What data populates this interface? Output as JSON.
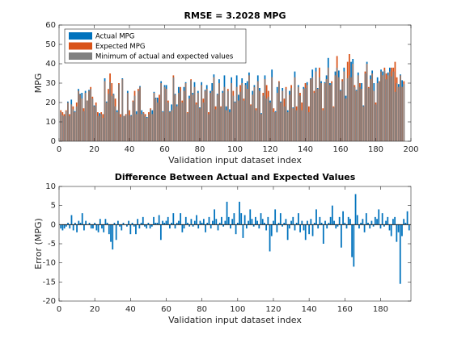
{
  "chart_data": [
    {
      "type": "bar",
      "title": "RMSE = 3.2028 MPG",
      "xlabel": "Validation input dataset index",
      "ylabel": "MPG",
      "xlim": [
        0,
        200
      ],
      "xticks": [
        0,
        20,
        40,
        60,
        80,
        100,
        120,
        140,
        160,
        180,
        200
      ],
      "ylim": [
        0,
        60
      ],
      "yticks": [
        0,
        10,
        20,
        30,
        40,
        50,
        60
      ],
      "legend": "upper left",
      "x": [
        1,
        2,
        3,
        4,
        5,
        6,
        7,
        8,
        9,
        10,
        11,
        12,
        13,
        14,
        15,
        16,
        17,
        18,
        19,
        20,
        21,
        22,
        23,
        24,
        25,
        26,
        27,
        28,
        29,
        30,
        31,
        32,
        33,
        34,
        35,
        36,
        37,
        38,
        39,
        40,
        41,
        42,
        43,
        44,
        45,
        46,
        47,
        48,
        49,
        50,
        51,
        52,
        53,
        54,
        55,
        56,
        57,
        58,
        59,
        60,
        61,
        62,
        63,
        64,
        65,
        66,
        67,
        68,
        69,
        70,
        71,
        72,
        73,
        74,
        75,
        76,
        77,
        78,
        79,
        80,
        81,
        82,
        83,
        84,
        85,
        86,
        87,
        88,
        89,
        90,
        91,
        92,
        93,
        94,
        95,
        96,
        97,
        98,
        99,
        100,
        101,
        102,
        103,
        104,
        105,
        106,
        107,
        108,
        109,
        110,
        111,
        112,
        113,
        114,
        115,
        116,
        117,
        118,
        119,
        120,
        121,
        122,
        123,
        124,
        125,
        126,
        127,
        128,
        129,
        130,
        131,
        132,
        133,
        134,
        135,
        136,
        137,
        138,
        139,
        140,
        141,
        142,
        143,
        144,
        145,
        146,
        147,
        148,
        149,
        150,
        151,
        152,
        153,
        154,
        155,
        156,
        157,
        158,
        159,
        160,
        161,
        162,
        163,
        164,
        165,
        166,
        167,
        168,
        169,
        170,
        171,
        172,
        173,
        174,
        175,
        176,
        177,
        178,
        179,
        180,
        181,
        182,
        183,
        184,
        185,
        186,
        187,
        188,
        189,
        190,
        191,
        192,
        193,
        194,
        195,
        196
      ],
      "series": [
        {
          "name": "Actual MPG",
          "color": "#0072bd",
          "values": [
            15,
            13.5,
            13,
            15.5,
            20.5,
            13,
            21.5,
            16.5,
            15.5,
            18,
            27,
            24.5,
            25,
            15.5,
            26,
            21,
            26.5,
            27,
            22,
            18.5,
            18.5,
            13,
            14.5,
            14,
            12,
            32.5,
            20.5,
            24.5,
            30.5,
            23.5,
            24.5,
            18,
            16,
            29.5,
            12.5,
            32.5,
            13,
            13.5,
            26,
            13.5,
            13.5,
            20.5,
            23.5,
            15.5,
            26,
            28.5,
            16,
            14.5,
            13,
            12.5,
            14,
            16.5,
            16,
            25.5,
            22.5,
            22.5,
            20,
            31,
            15.5,
            29,
            29,
            20,
            15.5,
            19,
            33,
            24.5,
            19,
            28,
            26,
            20,
            28,
            30.5,
            14.5,
            23.5,
            31.5,
            25,
            30.5,
            19,
            26,
            17.5,
            30.5,
            20,
            26.5,
            29,
            14,
            26,
            30,
            34.5,
            16.5,
            24.5,
            32,
            17.5,
            26,
            34,
            18,
            26,
            16.5,
            33,
            23.5,
            20.5,
            34,
            24,
            25.5,
            32.5,
            21,
            30,
            31,
            35.5,
            18.5,
            26,
            29,
            16,
            34,
            27.5,
            14.5,
            23.5,
            34,
            22,
            23,
            21,
            37,
            15,
            15.5,
            28,
            30.5,
            20.5,
            27.5,
            18,
            27,
            16,
            26,
            27.5,
            17.5,
            36,
            16,
            29,
            23.5,
            16,
            28,
            27.5,
            30.5,
            15,
            32.5,
            37,
            25,
            38,
            27.5,
            33,
            31,
            16,
            30.5,
            34,
            43,
            30,
            30,
            17.5,
            36,
            38,
            36.5,
            26.5,
            31,
            38,
            23.5,
            32.5,
            34,
            41,
            42.5,
            28,
            26.5,
            35.5,
            28,
            30,
            18.5,
            35,
            41,
            27.5,
            34,
            36.5,
            30,
            19,
            33,
            30.5,
            37,
            36,
            36.5,
            32,
            35.5,
            38,
            33.5,
            36,
            25.5,
            30,
            29.5,
            34.5,
            31.5,
            29.5
          ]
        },
        {
          "name": "Expected MPG",
          "color": "#d95319",
          "values": [
            16,
            15,
            14,
            16,
            20,
            14,
            19,
            18,
            15,
            20,
            26,
            24,
            22,
            17,
            25,
            21,
            26,
            28,
            23,
            18,
            20,
            15,
            13,
            15,
            14,
            31,
            20,
            27,
            35,
            30,
            24,
            22,
            15,
            30,
            14,
            32,
            13,
            14,
            25,
            16,
            13,
            21,
            26,
            14,
            27,
            28,
            14,
            15,
            14,
            12,
            15,
            17,
            14,
            25,
            22,
            20,
            24,
            30,
            15,
            28,
            27,
            21,
            15,
            16,
            34,
            24,
            18,
            25,
            28,
            21,
            26,
            30,
            15,
            22,
            32,
            24,
            28,
            20,
            25,
            17,
            29,
            22,
            26,
            27,
            15,
            25,
            26,
            33,
            18,
            24,
            30,
            18,
            25,
            28,
            16,
            27,
            15,
            30,
            26,
            20,
            28,
            21,
            29,
            30,
            22,
            29,
            27,
            34,
            19,
            24,
            28,
            17,
            31,
            26,
            14,
            25,
            32,
            29,
            26,
            20,
            33,
            17,
            15,
            25,
            31,
            20,
            26,
            22,
            28,
            15,
            24,
            29,
            17,
            33,
            18,
            28,
            25,
            20,
            27,
            30,
            29,
            18,
            32,
            33,
            26,
            36,
            27,
            38,
            30,
            17,
            30,
            32,
            38,
            29,
            31,
            18,
            34,
            44,
            33,
            26,
            32,
            36,
            22,
            41,
            45,
            33,
            40,
            29,
            26,
            34,
            30,
            27,
            18,
            36,
            40,
            28,
            32,
            35,
            26,
            20,
            30,
            31,
            36,
            34,
            38,
            35,
            34,
            36,
            38,
            38,
            41,
            33,
            28,
            34,
            28,
            31
          ]
        },
        {
          "name": "Minimum of actual and expected values",
          "color": "#808080",
          "values": [
            15,
            13.5,
            13,
            15.5,
            20,
            13,
            19,
            16.5,
            15,
            18,
            26,
            24,
            22,
            15.5,
            25,
            21,
            26,
            27,
            22,
            18,
            18.5,
            13,
            13,
            14,
            12,
            31,
            20,
            24.5,
            30.5,
            23.5,
            24,
            18,
            15,
            29.5,
            12.5,
            32,
            13,
            13.5,
            25,
            13.5,
            13,
            20.5,
            23.5,
            14,
            26,
            28,
            14,
            14.5,
            13,
            12,
            14,
            16.5,
            14,
            25,
            22,
            20,
            20,
            30,
            15,
            28,
            27,
            20,
            15,
            16,
            33,
            24,
            18,
            25,
            26,
            20,
            26,
            30,
            14.5,
            22,
            31.5,
            24,
            28,
            19,
            25,
            17,
            29,
            20,
            26,
            27,
            14,
            25,
            26,
            33,
            16.5,
            24,
            30,
            17.5,
            25,
            28,
            16,
            26,
            15,
            30,
            23.5,
            20,
            28,
            21,
            25.5,
            30,
            21,
            29,
            27,
            34,
            18.5,
            24,
            28,
            16,
            31,
            26,
            14,
            23.5,
            32,
            22,
            23,
            20,
            33,
            15,
            15,
            25,
            30.5,
            20,
            26,
            18,
            27,
            15,
            24,
            27.5,
            17,
            33,
            16,
            28,
            23.5,
            16,
            27,
            27.5,
            29,
            15,
            32,
            33,
            25,
            36,
            27,
            33,
            30,
            16,
            30,
            32,
            38,
            29,
            30,
            17.5,
            34,
            38,
            33,
            26,
            31,
            36,
            22,
            32.5,
            34,
            33,
            40,
            28,
            26,
            34,
            28,
            27,
            18,
            35,
            40,
            27.5,
            32,
            35,
            26,
            19,
            30,
            30.5,
            36,
            34,
            36.5,
            32,
            34,
            36,
            33.5,
            36,
            25.5,
            30,
            28,
            34,
            28,
            29.5
          ]
        }
      ]
    },
    {
      "type": "bar",
      "title": "Difference Between Actual and Expected Values",
      "xlabel": "Validation input dataset index",
      "ylabel": "Error (MPG)",
      "xlim": [
        0,
        197
      ],
      "xticks": [
        0,
        20,
        40,
        60,
        80,
        100,
        120,
        140,
        160,
        180
      ],
      "ylim": [
        -20,
        10
      ],
      "yticks": [
        -20,
        -15,
        -10,
        -5,
        0,
        5,
        10
      ],
      "x": [
        1,
        2,
        3,
        4,
        5,
        6,
        7,
        8,
        9,
        10,
        11,
        12,
        13,
        14,
        15,
        16,
        17,
        18,
        19,
        20,
        21,
        22,
        23,
        24,
        25,
        26,
        27,
        28,
        29,
        30,
        31,
        32,
        33,
        34,
        35,
        36,
        37,
        38,
        39,
        40,
        41,
        42,
        43,
        44,
        45,
        46,
        47,
        48,
        49,
        50,
        51,
        52,
        53,
        54,
        55,
        56,
        57,
        58,
        59,
        60,
        61,
        62,
        63,
        64,
        65,
        66,
        67,
        68,
        69,
        70,
        71,
        72,
        73,
        74,
        75,
        76,
        77,
        78,
        79,
        80,
        81,
        82,
        83,
        84,
        85,
        86,
        87,
        88,
        89,
        90,
        91,
        92,
        93,
        94,
        95,
        96,
        97,
        98,
        99,
        100,
        101,
        102,
        103,
        104,
        105,
        106,
        107,
        108,
        109,
        110,
        111,
        112,
        113,
        114,
        115,
        116,
        117,
        118,
        119,
        120,
        121,
        122,
        123,
        124,
        125,
        126,
        127,
        128,
        129,
        130,
        131,
        132,
        133,
        134,
        135,
        136,
        137,
        138,
        139,
        140,
        141,
        142,
        143,
        144,
        145,
        146,
        147,
        148,
        149,
        150,
        151,
        152,
        153,
        154,
        155,
        156,
        157,
        158,
        159,
        160,
        161,
        162,
        163,
        164,
        165,
        166,
        167,
        168,
        169,
        170,
        171,
        172,
        173,
        174,
        175,
        176,
        177,
        178,
        179,
        180,
        181,
        182,
        183,
        184,
        185,
        186,
        187,
        188,
        189,
        190,
        191,
        192,
        193,
        194,
        195,
        196
      ],
      "series": [
        {
          "name": "Error",
          "color": "#0072bd",
          "values": [
            -1,
            -1.5,
            -1,
            -0.5,
            0.5,
            -1,
            2.5,
            -1.5,
            0.5,
            -2,
            1,
            0.5,
            3,
            -1.5,
            1,
            0,
            0.5,
            -1,
            -1,
            0.5,
            -1.5,
            -2,
            1.5,
            -1,
            -2,
            1.5,
            0.5,
            -2.5,
            -4.5,
            -6.5,
            0.5,
            -4,
            1,
            -0.5,
            -1.5,
            0.5,
            0,
            -0.5,
            1,
            -2.5,
            0.5,
            -0.5,
            -2.5,
            1.5,
            -1,
            0.5,
            2,
            -0.5,
            -1,
            0.5,
            -1,
            -0.5,
            2,
            0.5,
            0.5,
            2.5,
            -4,
            1,
            0.5,
            1,
            2,
            -1,
            0.5,
            3,
            -1,
            0.5,
            1,
            3,
            -2,
            -1,
            2,
            0.5,
            -0.5,
            1.5,
            -0.5,
            1,
            2.5,
            -1,
            1,
            0.5,
            1.5,
            -2,
            0.5,
            2,
            -1,
            1,
            4,
            1.5,
            -1.5,
            0.5,
            2,
            -0.5,
            1,
            6,
            2,
            -1,
            1.5,
            3,
            -2.5,
            0.5,
            6,
            3,
            -3.5,
            2.5,
            -1,
            1,
            4,
            1.5,
            -0.5,
            2,
            1,
            -1,
            3,
            1.5,
            0.5,
            -1.5,
            2,
            -7,
            -3,
            1,
            4,
            -2,
            0.5,
            3,
            -0.5,
            0.5,
            1.5,
            -4,
            -1,
            1,
            2,
            -1.5,
            0.5,
            3,
            -2,
            1,
            -1.5,
            -4,
            1,
            -2.5,
            1.5,
            -3,
            0.5,
            4,
            -1,
            2,
            0.5,
            -5,
            1,
            -1,
            0.5,
            2,
            5,
            1,
            -1,
            -0.5,
            2,
            -6,
            3.5,
            0.5,
            -1,
            2,
            1.5,
            -8.5,
            -11,
            8,
            2.5,
            -1,
            0.5,
            1.5,
            -2,
            3,
            0.5,
            -1,
            1,
            -0.5,
            2,
            1.5,
            4,
            -1,
            3,
            -0.5,
            1,
            2,
            -1.5,
            -3,
            1.5,
            2,
            -4.5,
            -2,
            -15.5,
            -3,
            1.5,
            0.5,
            3.5,
            -1.5
          ]
        }
      ]
    }
  ]
}
